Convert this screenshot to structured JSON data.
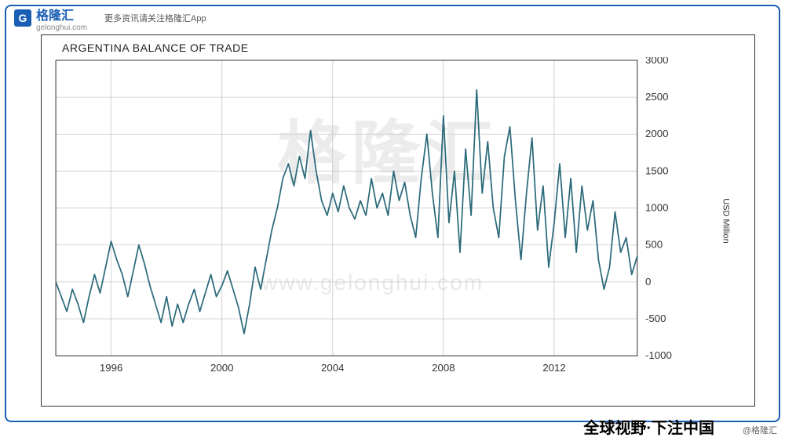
{
  "brand": {
    "logo_letter": "G",
    "name": "格隆汇",
    "domain": "gelonghui.com"
  },
  "header": {
    "subtext": "更多资讯请关注格隆汇App"
  },
  "footer": {
    "slogan": "全球视野·下注中国",
    "tag": "@格隆汇"
  },
  "watermark": {
    "big": "格隆汇",
    "url": "www.gelonghui.com"
  },
  "chart": {
    "type": "line",
    "title": "ARGENTINA BALANCE OF TRADE",
    "y_axis_label": "USD Million",
    "line_color": "#2b6a7a",
    "line_width": 1.7,
    "grid_color": "#c8c8c8",
    "border_color": "#333333",
    "background_color": "#ffffff",
    "xlim": [
      1994,
      2015
    ],
    "ylim": [
      -1000,
      3000
    ],
    "x_ticks": [
      1996,
      2000,
      2004,
      2008,
      2012
    ],
    "y_ticks": [
      -1000,
      -500,
      0,
      500,
      1000,
      1500,
      2000,
      2500,
      3000
    ],
    "title_fontsize": 14,
    "tick_fontsize": 13,
    "series": [
      {
        "x": 1994.0,
        "y": 0
      },
      {
        "x": 1994.2,
        "y": -200
      },
      {
        "x": 1994.4,
        "y": -400
      },
      {
        "x": 1994.6,
        "y": -100
      },
      {
        "x": 1994.8,
        "y": -300
      },
      {
        "x": 1995.0,
        "y": -550
      },
      {
        "x": 1995.2,
        "y": -200
      },
      {
        "x": 1995.4,
        "y": 100
      },
      {
        "x": 1995.6,
        "y": -150
      },
      {
        "x": 1995.8,
        "y": 200
      },
      {
        "x": 1996.0,
        "y": 550
      },
      {
        "x": 1996.2,
        "y": 300
      },
      {
        "x": 1996.4,
        "y": 100
      },
      {
        "x": 1996.6,
        "y": -200
      },
      {
        "x": 1996.8,
        "y": 150
      },
      {
        "x": 1997.0,
        "y": 500
      },
      {
        "x": 1997.2,
        "y": 250
      },
      {
        "x": 1997.4,
        "y": -50
      },
      {
        "x": 1997.6,
        "y": -300
      },
      {
        "x": 1997.8,
        "y": -550
      },
      {
        "x": 1998.0,
        "y": -200
      },
      {
        "x": 1998.2,
        "y": -600
      },
      {
        "x": 1998.4,
        "y": -300
      },
      {
        "x": 1998.6,
        "y": -550
      },
      {
        "x": 1998.8,
        "y": -300
      },
      {
        "x": 1999.0,
        "y": -100
      },
      {
        "x": 1999.2,
        "y": -400
      },
      {
        "x": 1999.4,
        "y": -150
      },
      {
        "x": 1999.6,
        "y": 100
      },
      {
        "x": 1999.8,
        "y": -200
      },
      {
        "x": 2000.0,
        "y": -50
      },
      {
        "x": 2000.2,
        "y": 150
      },
      {
        "x": 2000.4,
        "y": -100
      },
      {
        "x": 2000.6,
        "y": -350
      },
      {
        "x": 2000.8,
        "y": -700
      },
      {
        "x": 2001.0,
        "y": -300
      },
      {
        "x": 2001.2,
        "y": 200
      },
      {
        "x": 2001.4,
        "y": -100
      },
      {
        "x": 2001.6,
        "y": 300
      },
      {
        "x": 2001.8,
        "y": 700
      },
      {
        "x": 2002.0,
        "y": 1000
      },
      {
        "x": 2002.2,
        "y": 1400
      },
      {
        "x": 2002.4,
        "y": 1600
      },
      {
        "x": 2002.6,
        "y": 1300
      },
      {
        "x": 2002.8,
        "y": 1700
      },
      {
        "x": 2003.0,
        "y": 1400
      },
      {
        "x": 2003.2,
        "y": 2050
      },
      {
        "x": 2003.4,
        "y": 1500
      },
      {
        "x": 2003.6,
        "y": 1100
      },
      {
        "x": 2003.8,
        "y": 900
      },
      {
        "x": 2004.0,
        "y": 1200
      },
      {
        "x": 2004.2,
        "y": 950
      },
      {
        "x": 2004.4,
        "y": 1300
      },
      {
        "x": 2004.6,
        "y": 1000
      },
      {
        "x": 2004.8,
        "y": 850
      },
      {
        "x": 2005.0,
        "y": 1100
      },
      {
        "x": 2005.2,
        "y": 900
      },
      {
        "x": 2005.4,
        "y": 1400
      },
      {
        "x": 2005.6,
        "y": 1000
      },
      {
        "x": 2005.8,
        "y": 1200
      },
      {
        "x": 2006.0,
        "y": 900
      },
      {
        "x": 2006.2,
        "y": 1500
      },
      {
        "x": 2006.4,
        "y": 1100
      },
      {
        "x": 2006.6,
        "y": 1350
      },
      {
        "x": 2006.8,
        "y": 900
      },
      {
        "x": 2007.0,
        "y": 600
      },
      {
        "x": 2007.2,
        "y": 1400
      },
      {
        "x": 2007.4,
        "y": 2000
      },
      {
        "x": 2007.6,
        "y": 1200
      },
      {
        "x": 2007.8,
        "y": 600
      },
      {
        "x": 2008.0,
        "y": 2250
      },
      {
        "x": 2008.2,
        "y": 800
      },
      {
        "x": 2008.4,
        "y": 1500
      },
      {
        "x": 2008.6,
        "y": 400
      },
      {
        "x": 2008.8,
        "y": 1800
      },
      {
        "x": 2009.0,
        "y": 900
      },
      {
        "x": 2009.2,
        "y": 2600
      },
      {
        "x": 2009.4,
        "y": 1200
      },
      {
        "x": 2009.6,
        "y": 1900
      },
      {
        "x": 2009.8,
        "y": 1000
      },
      {
        "x": 2010.0,
        "y": 600
      },
      {
        "x": 2010.2,
        "y": 1700
      },
      {
        "x": 2010.4,
        "y": 2100
      },
      {
        "x": 2010.6,
        "y": 1100
      },
      {
        "x": 2010.8,
        "y": 300
      },
      {
        "x": 2011.0,
        "y": 1200
      },
      {
        "x": 2011.2,
        "y": 1950
      },
      {
        "x": 2011.4,
        "y": 700
      },
      {
        "x": 2011.6,
        "y": 1300
      },
      {
        "x": 2011.8,
        "y": 200
      },
      {
        "x": 2012.0,
        "y": 800
      },
      {
        "x": 2012.2,
        "y": 1600
      },
      {
        "x": 2012.4,
        "y": 600
      },
      {
        "x": 2012.6,
        "y": 1400
      },
      {
        "x": 2012.8,
        "y": 400
      },
      {
        "x": 2013.0,
        "y": 1300
      },
      {
        "x": 2013.2,
        "y": 700
      },
      {
        "x": 2013.4,
        "y": 1100
      },
      {
        "x": 2013.6,
        "y": 300
      },
      {
        "x": 2013.8,
        "y": -100
      },
      {
        "x": 2014.0,
        "y": 200
      },
      {
        "x": 2014.2,
        "y": 950
      },
      {
        "x": 2014.4,
        "y": 400
      },
      {
        "x": 2014.6,
        "y": 600
      },
      {
        "x": 2014.8,
        "y": 100
      },
      {
        "x": 2015.0,
        "y": 350
      }
    ]
  }
}
